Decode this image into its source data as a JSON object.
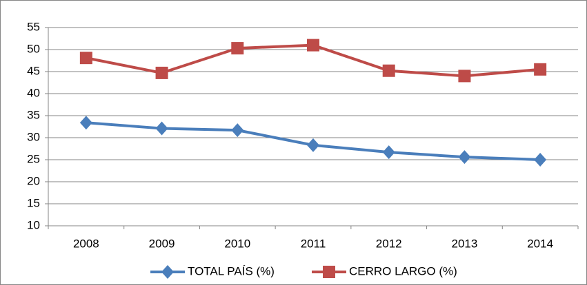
{
  "chart_data": {
    "type": "line",
    "categories": [
      "2008",
      "2009",
      "2010",
      "2011",
      "2012",
      "2013",
      "2014"
    ],
    "series": [
      {
        "name": "TOTAL PAÍS (%)",
        "color": "#4a7ebb",
        "marker": "diamond",
        "values": [
          33.4,
          32.1,
          31.7,
          28.3,
          26.7,
          25.6,
          25.0
        ]
      },
      {
        "name": "CERRO LARGO (%)",
        "color": "#be4b48",
        "marker": "square",
        "values": [
          48.1,
          44.7,
          50.3,
          51.0,
          45.2,
          44.0,
          45.5
        ]
      }
    ],
    "ylim": [
      10,
      55
    ],
    "yticks": [
      10,
      15,
      20,
      25,
      30,
      35,
      40,
      45,
      50,
      55
    ],
    "grid": true,
    "legend": "bottom"
  }
}
